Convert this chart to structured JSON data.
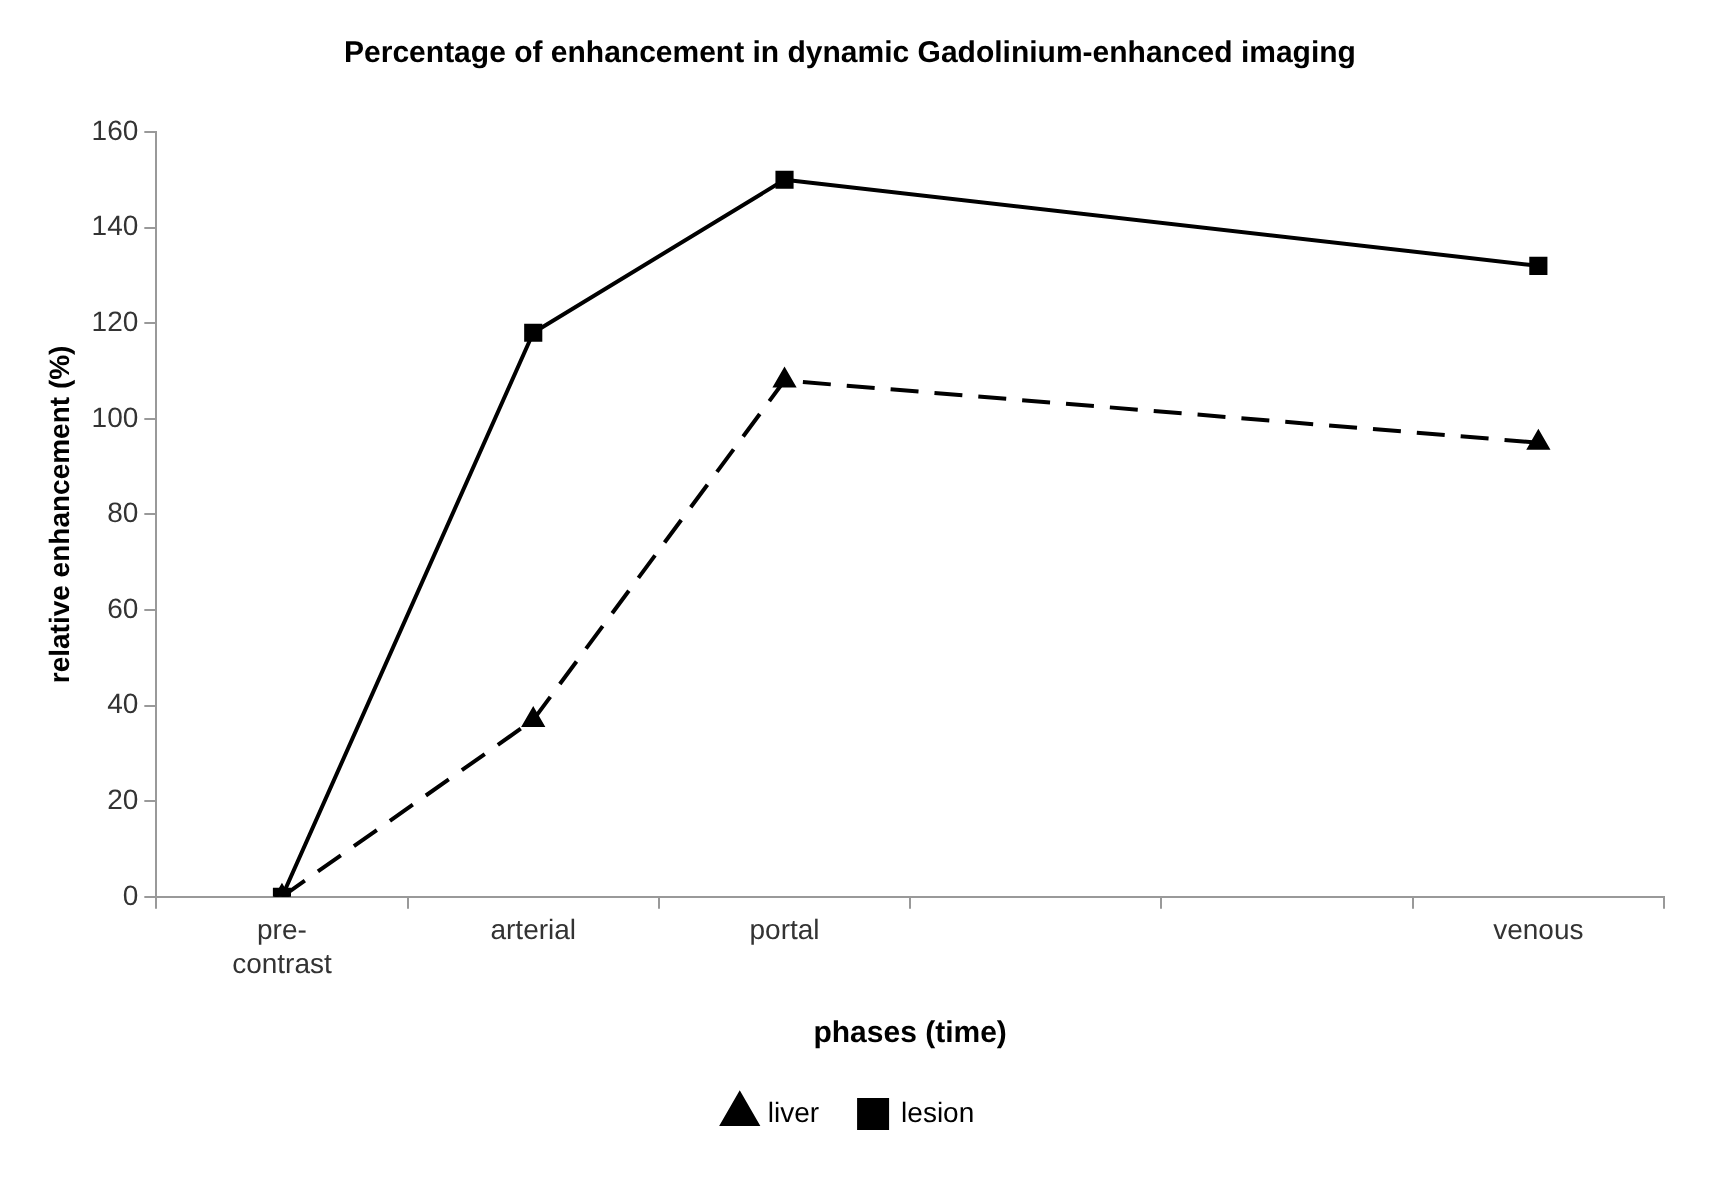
{
  "chart_data": {
    "type": "line",
    "title": "Percentage of enhancement in dynamic Gadolinium-enhanced imaging",
    "xlabel": "phases (time)",
    "ylabel": "relative enhancement (%)",
    "categories": [
      "pre-contrast",
      "arterial",
      "portal",
      null,
      null,
      "venous"
    ],
    "series": [
      {
        "name": "liver",
        "color": "#000000",
        "values": [
          0,
          37,
          108,
          null,
          null,
          95
        ],
        "marker": "triangle",
        "line_style": "dashed"
      },
      {
        "name": "lesion",
        "color": "#000000",
        "values": [
          0,
          118,
          150,
          null,
          null,
          132
        ],
        "marker": "square",
        "line_style": "solid"
      }
    ],
    "ylim": [
      0,
      160
    ],
    "yticks": [
      0,
      20,
      40,
      60,
      80,
      100,
      120,
      140,
      160
    ],
    "grid": false,
    "legend": "bottom"
  }
}
